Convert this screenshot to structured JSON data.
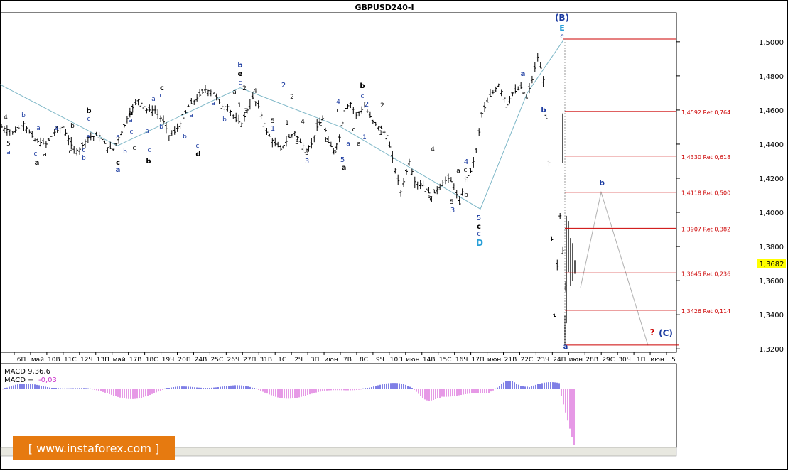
{
  "title": "GBPUSD240-I",
  "price_axis_labels": [
    "1,5000",
    "1,4800",
    "1,4600",
    "1,4400",
    "1,4200",
    "1,4000",
    "1,3800",
    "1,3600",
    "1,3400",
    "1,3200"
  ],
  "price_axis_values": [
    1.5,
    1.48,
    1.46,
    1.44,
    1.42,
    1.4,
    1.38,
    1.36,
    1.34,
    1.32
  ],
  "current_price_label": "1,3682",
  "current_price": 1.3682,
  "time_axis_labels": [
    "6П",
    "май",
    "10В",
    "11С",
    "12Ч",
    "13П",
    "май",
    "17В",
    "18С",
    "19Ч",
    "20П",
    "24В",
    "25С",
    "26Ч",
    "27П",
    "31В",
    "1С",
    "2Ч",
    "3П",
    "июн",
    "7В",
    "8С",
    "9Ч",
    "10П",
    "июн",
    "14В",
    "15С",
    "16Ч",
    "17П",
    "июн",
    "21В",
    "22С",
    "23Ч",
    "24П",
    "июн",
    "28В",
    "29С",
    "30Ч",
    "1П",
    "июн",
    "5"
  ],
  "fib_levels": [
    {
      "label": "1,4592 Ret 0,764",
      "price": 1.4592
    },
    {
      "label": "1,4330 Ret 0,618",
      "price": 1.433
    },
    {
      "label": "1,4118 Ret 0,500",
      "price": 1.4118
    },
    {
      "label": "1,3907 Ret 0,382",
      "price": 1.3907
    },
    {
      "label": "1,3645 Ret 0,236",
      "price": 1.3645
    },
    {
      "label": "1,3426 Ret 0,114",
      "price": 1.3426
    }
  ],
  "fib_top_price": 1.5016,
  "fib_bottom_price": 1.3222,
  "wave_labels": {
    "B_big": "(B)",
    "C_big": "(C)",
    "question": "?",
    "E": "E",
    "D": "D",
    "b_proj": "b",
    "a_low": "a"
  },
  "macd": {
    "label1": "MACD 9,36,6",
    "label2_prefix": "MACD = ",
    "label2_value": "-0,03",
    "bar_color": "#cc33cc",
    "pos_color": "#0000cc"
  },
  "watermark": "[ www.instaforex.com ]",
  "colors": {
    "fib_line": "#cc0000",
    "fib_text": "#cc0000",
    "blue_label": "#1a3aa0",
    "cyan_label": "#2aa0d8",
    "trend_line": "#7fb8c8",
    "projection_line": "#b0b0b0",
    "price_marker": "#ffff00"
  },
  "chart_data": {
    "type": "candlestick",
    "title": "GBPUSD240-I",
    "ylim": [
      1.318,
      1.517
    ],
    "y_ticks": [
      1.5,
      1.48,
      1.46,
      1.44,
      1.42,
      1.4,
      1.38,
      1.36,
      1.34,
      1.32
    ],
    "x_tick_labels": [
      "6П",
      "май",
      "10В",
      "11С",
      "12Ч",
      "13П",
      "май",
      "17В",
      "18С",
      "19Ч",
      "20П",
      "24В",
      "25С",
      "26Ч",
      "27П",
      "31В",
      "1С",
      "2Ч",
      "3П",
      "июн",
      "7В",
      "8С",
      "9Ч",
      "10П",
      "июн",
      "14В",
      "15С",
      "16Ч",
      "17П",
      "июн",
      "21В",
      "22С",
      "23Ч",
      "24П",
      "июн",
      "28В",
      "29С",
      "30Ч",
      "1П",
      "июн",
      "5"
    ],
    "price_path": [
      [
        0,
        1.45
      ],
      [
        4,
        1.447
      ],
      [
        8,
        1.452
      ],
      [
        12,
        1.442
      ],
      [
        16,
        1.44
      ],
      [
        19,
        1.447
      ],
      [
        22,
        1.45
      ],
      [
        26,
        1.436
      ],
      [
        28,
        1.437
      ],
      [
        31,
        1.444
      ],
      [
        35,
        1.445
      ],
      [
        38,
        1.438
      ],
      [
        40,
        1.437
      ],
      [
        43,
        1.447
      ],
      [
        46,
        1.459
      ],
      [
        49,
        1.466
      ],
      [
        52,
        1.46
      ],
      [
        55,
        1.46
      ],
      [
        58,
        1.453
      ],
      [
        60,
        1.445
      ],
      [
        62,
        1.447
      ],
      [
        64,
        1.452
      ],
      [
        67,
        1.462
      ],
      [
        70,
        1.467
      ],
      [
        73,
        1.472
      ],
      [
        76,
        1.47
      ],
      [
        79,
        1.462
      ],
      [
        81,
        1.462
      ],
      [
        84,
        1.454
      ],
      [
        86,
        1.452
      ],
      [
        88,
        1.46
      ],
      [
        90,
        1.467
      ],
      [
        92,
        1.462
      ],
      [
        95,
        1.447
      ],
      [
        98,
        1.44
      ],
      [
        100,
        1.437
      ],
      [
        103,
        1.444
      ],
      [
        105,
        1.447
      ],
      [
        107,
        1.441
      ],
      [
        109,
        1.437
      ],
      [
        111,
        1.44
      ],
      [
        113,
        1.45
      ],
      [
        115,
        1.455
      ],
      [
        117,
        1.441
      ],
      [
        119,
        1.436
      ],
      [
        121,
        1.444
      ],
      [
        123,
        1.461
      ],
      [
        125,
        1.464
      ],
      [
        127,
        1.457
      ],
      [
        130,
        1.462
      ],
      [
        133,
        1.453
      ],
      [
        136,
        1.449
      ],
      [
        138,
        1.445
      ],
      [
        141,
        1.425
      ],
      [
        143,
        1.412
      ],
      [
        146,
        1.43
      ],
      [
        148,
        1.418
      ],
      [
        151,
        1.416
      ],
      [
        154,
        1.409
      ],
      [
        157,
        1.416
      ],
      [
        160,
        1.42
      ],
      [
        162,
        1.416
      ],
      [
        164,
        1.405
      ],
      [
        166,
        1.419
      ],
      [
        168,
        1.424
      ],
      [
        170,
        1.436
      ],
      [
        172,
        1.458
      ],
      [
        175,
        1.468
      ],
      [
        178,
        1.475
      ],
      [
        181,
        1.463
      ],
      [
        183,
        1.47
      ],
      [
        186,
        1.473
      ],
      [
        188,
        1.467
      ],
      [
        190,
        1.478
      ],
      [
        192,
        1.491
      ],
      [
        194,
        1.478
      ],
      [
        195,
        1.455
      ],
      [
        196,
        1.429
      ],
      [
        198,
        1.339
      ],
      [
        200,
        1.398
      ],
      [
        202,
        1.357
      ],
      [
        203,
        1.368
      ]
    ],
    "price_path_x_range": [
      0,
      203
    ],
    "macd_histogram_note": "MACD 9,36,6 ; current value -0,03"
  }
}
